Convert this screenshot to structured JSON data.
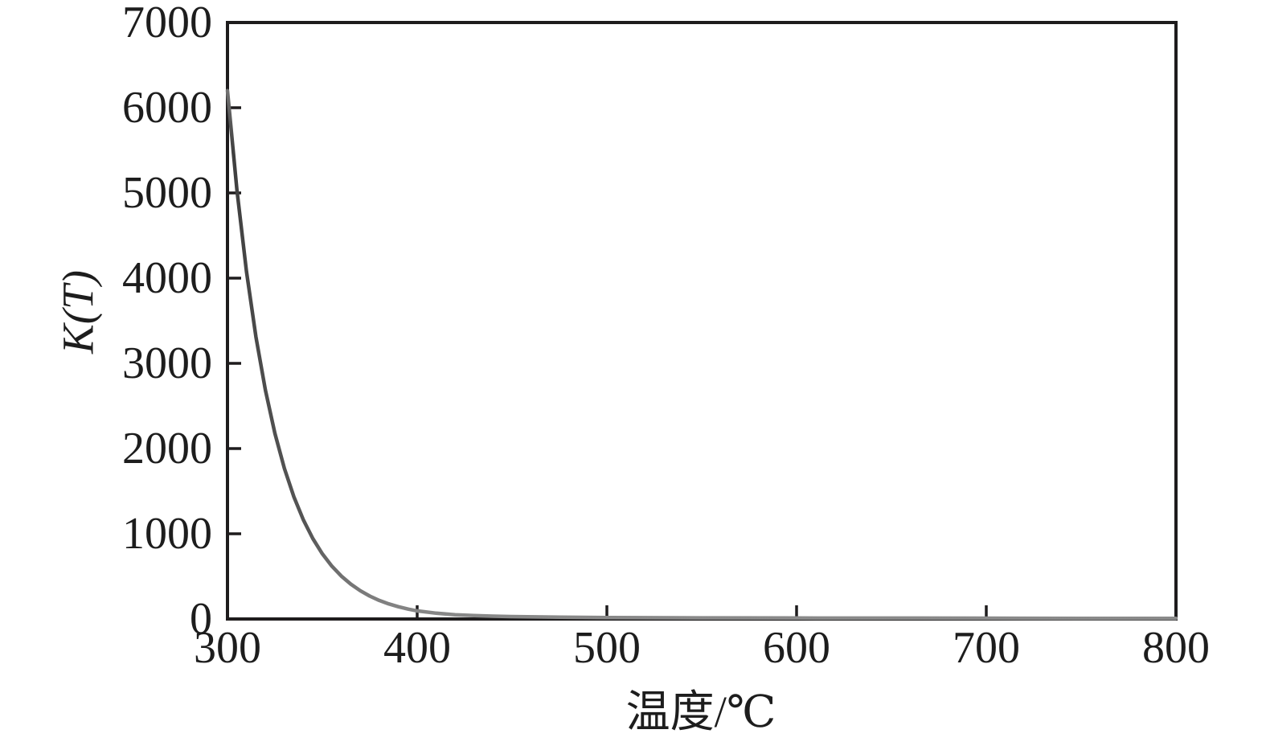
{
  "chart_data": {
    "type": "line",
    "title": "",
    "xlabel": "温度/℃",
    "ylabel": "K(T)",
    "xlim": [
      300,
      800
    ],
    "ylim": [
      0,
      7000
    ],
    "x_ticks": [
      300,
      400,
      500,
      600,
      700,
      800
    ],
    "y_ticks": [
      0,
      1000,
      2000,
      3000,
      4000,
      5000,
      6000,
      7000
    ],
    "grid": false,
    "legend_position": "none",
    "axis_color": "#1e1c1d",
    "curve_color": "#4a4a4a",
    "series": [
      {
        "name": "K(T)",
        "x": [
          300,
          305,
          310,
          315,
          320,
          325,
          330,
          335,
          340,
          345,
          350,
          355,
          360,
          365,
          370,
          375,
          380,
          385,
          390,
          395,
          400,
          410,
          420,
          430,
          440,
          450,
          475,
          500,
          550,
          600,
          650,
          700,
          750,
          800
        ],
        "y": [
          6200,
          5030,
          4080,
          3310,
          2685,
          2178,
          1767,
          1434,
          1163,
          943,
          765,
          621,
          504,
          409,
          332,
          269,
          218,
          177,
          144,
          117,
          95,
          68,
          50,
          40,
          33,
          28,
          21,
          17,
          13,
          11,
          10,
          9,
          8,
          8
        ]
      }
    ]
  }
}
